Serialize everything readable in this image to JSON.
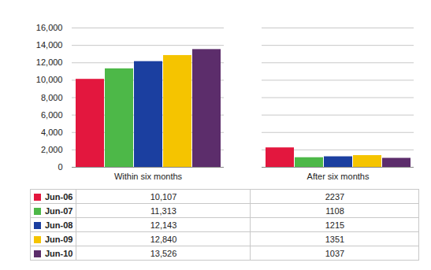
{
  "chart_data": {
    "type": "bar",
    "categories": [
      "Within six months",
      "After six months"
    ],
    "series": [
      {
        "name": "Jun-06",
        "color": "#e3173e",
        "values": [
          10107,
          2237
        ],
        "value_labels": [
          "10,107",
          "2237"
        ]
      },
      {
        "name": "Jun-07",
        "color": "#4db848",
        "values": [
          11313,
          1108
        ],
        "value_labels": [
          "11,313",
          "1108"
        ]
      },
      {
        "name": "Jun-08",
        "color": "#1b3fa0",
        "values": [
          12143,
          1215
        ],
        "value_labels": [
          "12,143",
          "1215"
        ]
      },
      {
        "name": "Jun-09",
        "color": "#f5c400",
        "values": [
          12840,
          1351
        ],
        "value_labels": [
          "12,840",
          "1351"
        ]
      },
      {
        "name": "Jun-10",
        "color": "#5c2d6b",
        "values": [
          13526,
          1037
        ],
        "value_labels": [
          "13,526",
          "1037"
        ]
      }
    ],
    "ylim": [
      0,
      16000
    ],
    "yticks": [
      0,
      {
        "value": 2000,
        "label": "2,000"
      },
      {
        "value": 4000,
        "label": "4,000"
      },
      {
        "value": 6000,
        "label": "6,000"
      },
      {
        "value": 8000,
        "label": "8,000"
      },
      {
        "value": 10000,
        "label": "10,000"
      },
      {
        "value": 12000,
        "label": "12,000"
      },
      {
        "value": 14000,
        "label": "14,000"
      },
      {
        "value": 16000,
        "label": "16,000"
      }
    ],
    "grid": true,
    "data_labels": true
  }
}
